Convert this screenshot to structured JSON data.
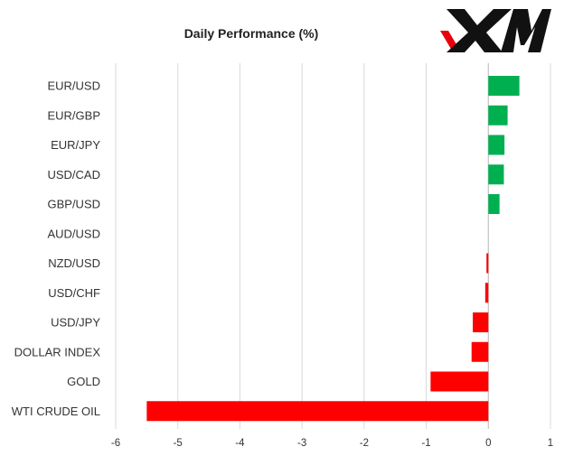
{
  "brand": {
    "logo_text": "XM",
    "accent_color": "#e8000d",
    "mark_color": "#111111"
  },
  "chart_data": {
    "type": "bar",
    "orientation": "horizontal",
    "title": "Daily Performance (%)",
    "xlabel": "",
    "ylabel": "",
    "categories": [
      "EUR/USD",
      "EUR/GBP",
      "EUR/JPY",
      "USD/CAD",
      "GBP/USD",
      "AUD/USD",
      "NZD/USD",
      "USD/CHF",
      "USD/JPY",
      "DOLLAR INDEX",
      "GOLD",
      "WTI CRUDE OIL"
    ],
    "values": [
      0.5,
      0.31,
      0.26,
      0.25,
      0.18,
      0.0,
      -0.03,
      -0.05,
      -0.25,
      -0.27,
      -0.93,
      -5.5
    ],
    "xlim": [
      -6,
      1
    ],
    "xticks": [
      "-6",
      "-5",
      "-4",
      "-3",
      "-2",
      "-1",
      "0",
      "1"
    ],
    "grid": "vertical",
    "legend": "none",
    "colors": {
      "positive": "#00b050",
      "negative": "#ff0000"
    }
  }
}
